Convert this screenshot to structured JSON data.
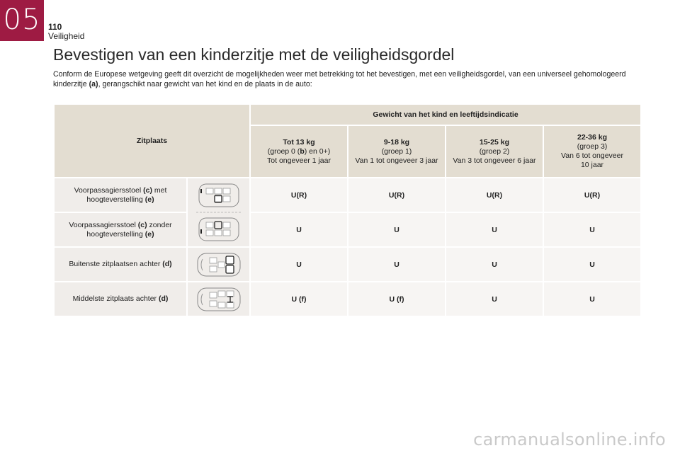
{
  "header": {
    "chapter": "05",
    "page_number": "110",
    "section": "Veiligheid"
  },
  "title": "Bevestigen van een kinderzitje met de veiligheidsgordel",
  "intro": {
    "part1": "Conform de Europese wetgeving geeft dit overzicht de mogelijkheden weer met betrekking tot het bevestigen, met een veiligheidsgordel, van een universeel gehomologeerd kinderzitje ",
    "ref": "(a)",
    "part2": ", gerangschikt naar gewicht van het kind en de plaats in de auto:"
  },
  "table": {
    "place_header": "Zitplaats",
    "weight_header": "Gewicht van het kind en leeftijdsindicatie",
    "columns": [
      {
        "weight": "Tot 13 kg",
        "group_pre": "(groep 0 (",
        "group_ref": "b",
        "group_post": ") en 0+)",
        "age": "Tot ongeveer 1 jaar"
      },
      {
        "weight": "9-18 kg",
        "group_pre": "(groep 1)",
        "group_ref": "",
        "group_post": "",
        "age": "Van 1 tot ongeveer 3 jaar"
      },
      {
        "weight": "15-25 kg",
        "group_pre": "(groep 2)",
        "group_ref": "",
        "group_post": "",
        "age": "Van 3 tot ongeveer 6 jaar"
      },
      {
        "weight": "22-36 kg",
        "group_pre": "(groep 3)",
        "group_ref": "",
        "group_post": "",
        "age": "Van 6 tot ongeveer 10 jaar"
      }
    ],
    "rows": [
      {
        "place": "Voorpassagiersstoel ",
        "ref1": "(c)",
        "mid": " met hoogteverstelling ",
        "ref2": "(e)",
        "values": [
          "U(R)",
          "U(R)",
          "U(R)",
          "U(R)"
        ]
      },
      {
        "place": "Voorpassagiersstoel ",
        "ref1": "(c)",
        "mid": " zonder hoogteverstelling ",
        "ref2": "(e)",
        "values": [
          "U",
          "U",
          "U",
          "U"
        ]
      },
      {
        "place": "Buitenste zitplaatsen achter ",
        "ref1": "(d)",
        "mid": "",
        "ref2": "",
        "values": [
          "U",
          "U",
          "U",
          "U"
        ]
      },
      {
        "place": "Middelste zitplaats achter ",
        "ref1": "(d)",
        "mid": "",
        "ref2": "",
        "values": [
          "U (f)",
          "U (f)",
          "U",
          "U"
        ]
      }
    ]
  },
  "watermark": "carmanualsonline.info",
  "colors": {
    "chapter_tab": "#9e1b43",
    "header_bg": "#e3ddd1",
    "cell_bg": "#f0edea"
  }
}
